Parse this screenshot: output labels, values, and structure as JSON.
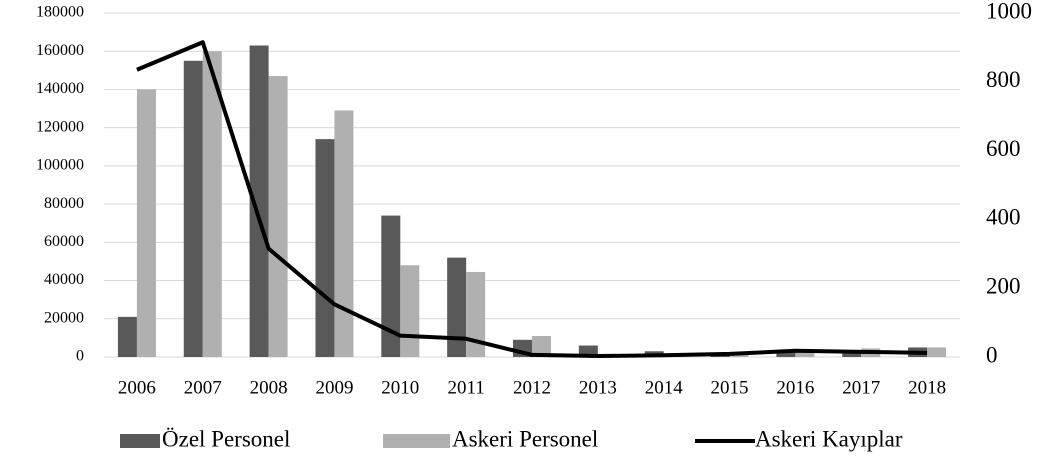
{
  "chart_data": {
    "type": "bar",
    "categories": [
      "2006",
      "2007",
      "2008",
      "2009",
      "2010",
      "2011",
      "2012",
      "2013",
      "2014",
      "2015",
      "2016",
      "2017",
      "2018"
    ],
    "series": [
      {
        "name": "Özel Personel",
        "color": "#595959",
        "values": [
          21000,
          155000,
          163000,
          114000,
          74000,
          52000,
          9000,
          6000,
          3000,
          1000,
          2500,
          3000,
          5000
        ]
      },
      {
        "name": "Askeri Personel",
        "color": "#b0b0b0",
        "values": [
          140000,
          160000,
          147000,
          129000,
          48000,
          44500,
          11000,
          1000,
          1500,
          1000,
          3000,
          4500,
          5000
        ]
      },
      {
        "name": "Askeri Kayıplar",
        "color": "#000000",
        "type": "line",
        "axis": "y2",
        "values": [
          835,
          915,
          315,
          153,
          62,
          53,
          6,
          3,
          5,
          9,
          18,
          15,
          12
        ]
      }
    ],
    "ylim": [
      0,
      180000
    ],
    "yticks": [
      0,
      20000,
      40000,
      60000,
      80000,
      100000,
      120000,
      140000,
      160000,
      180000
    ],
    "y2lim": [
      0,
      1000
    ],
    "y2ticks": [
      0,
      200,
      400,
      600,
      800,
      1000
    ],
    "grid": true,
    "legend": "bottom"
  }
}
